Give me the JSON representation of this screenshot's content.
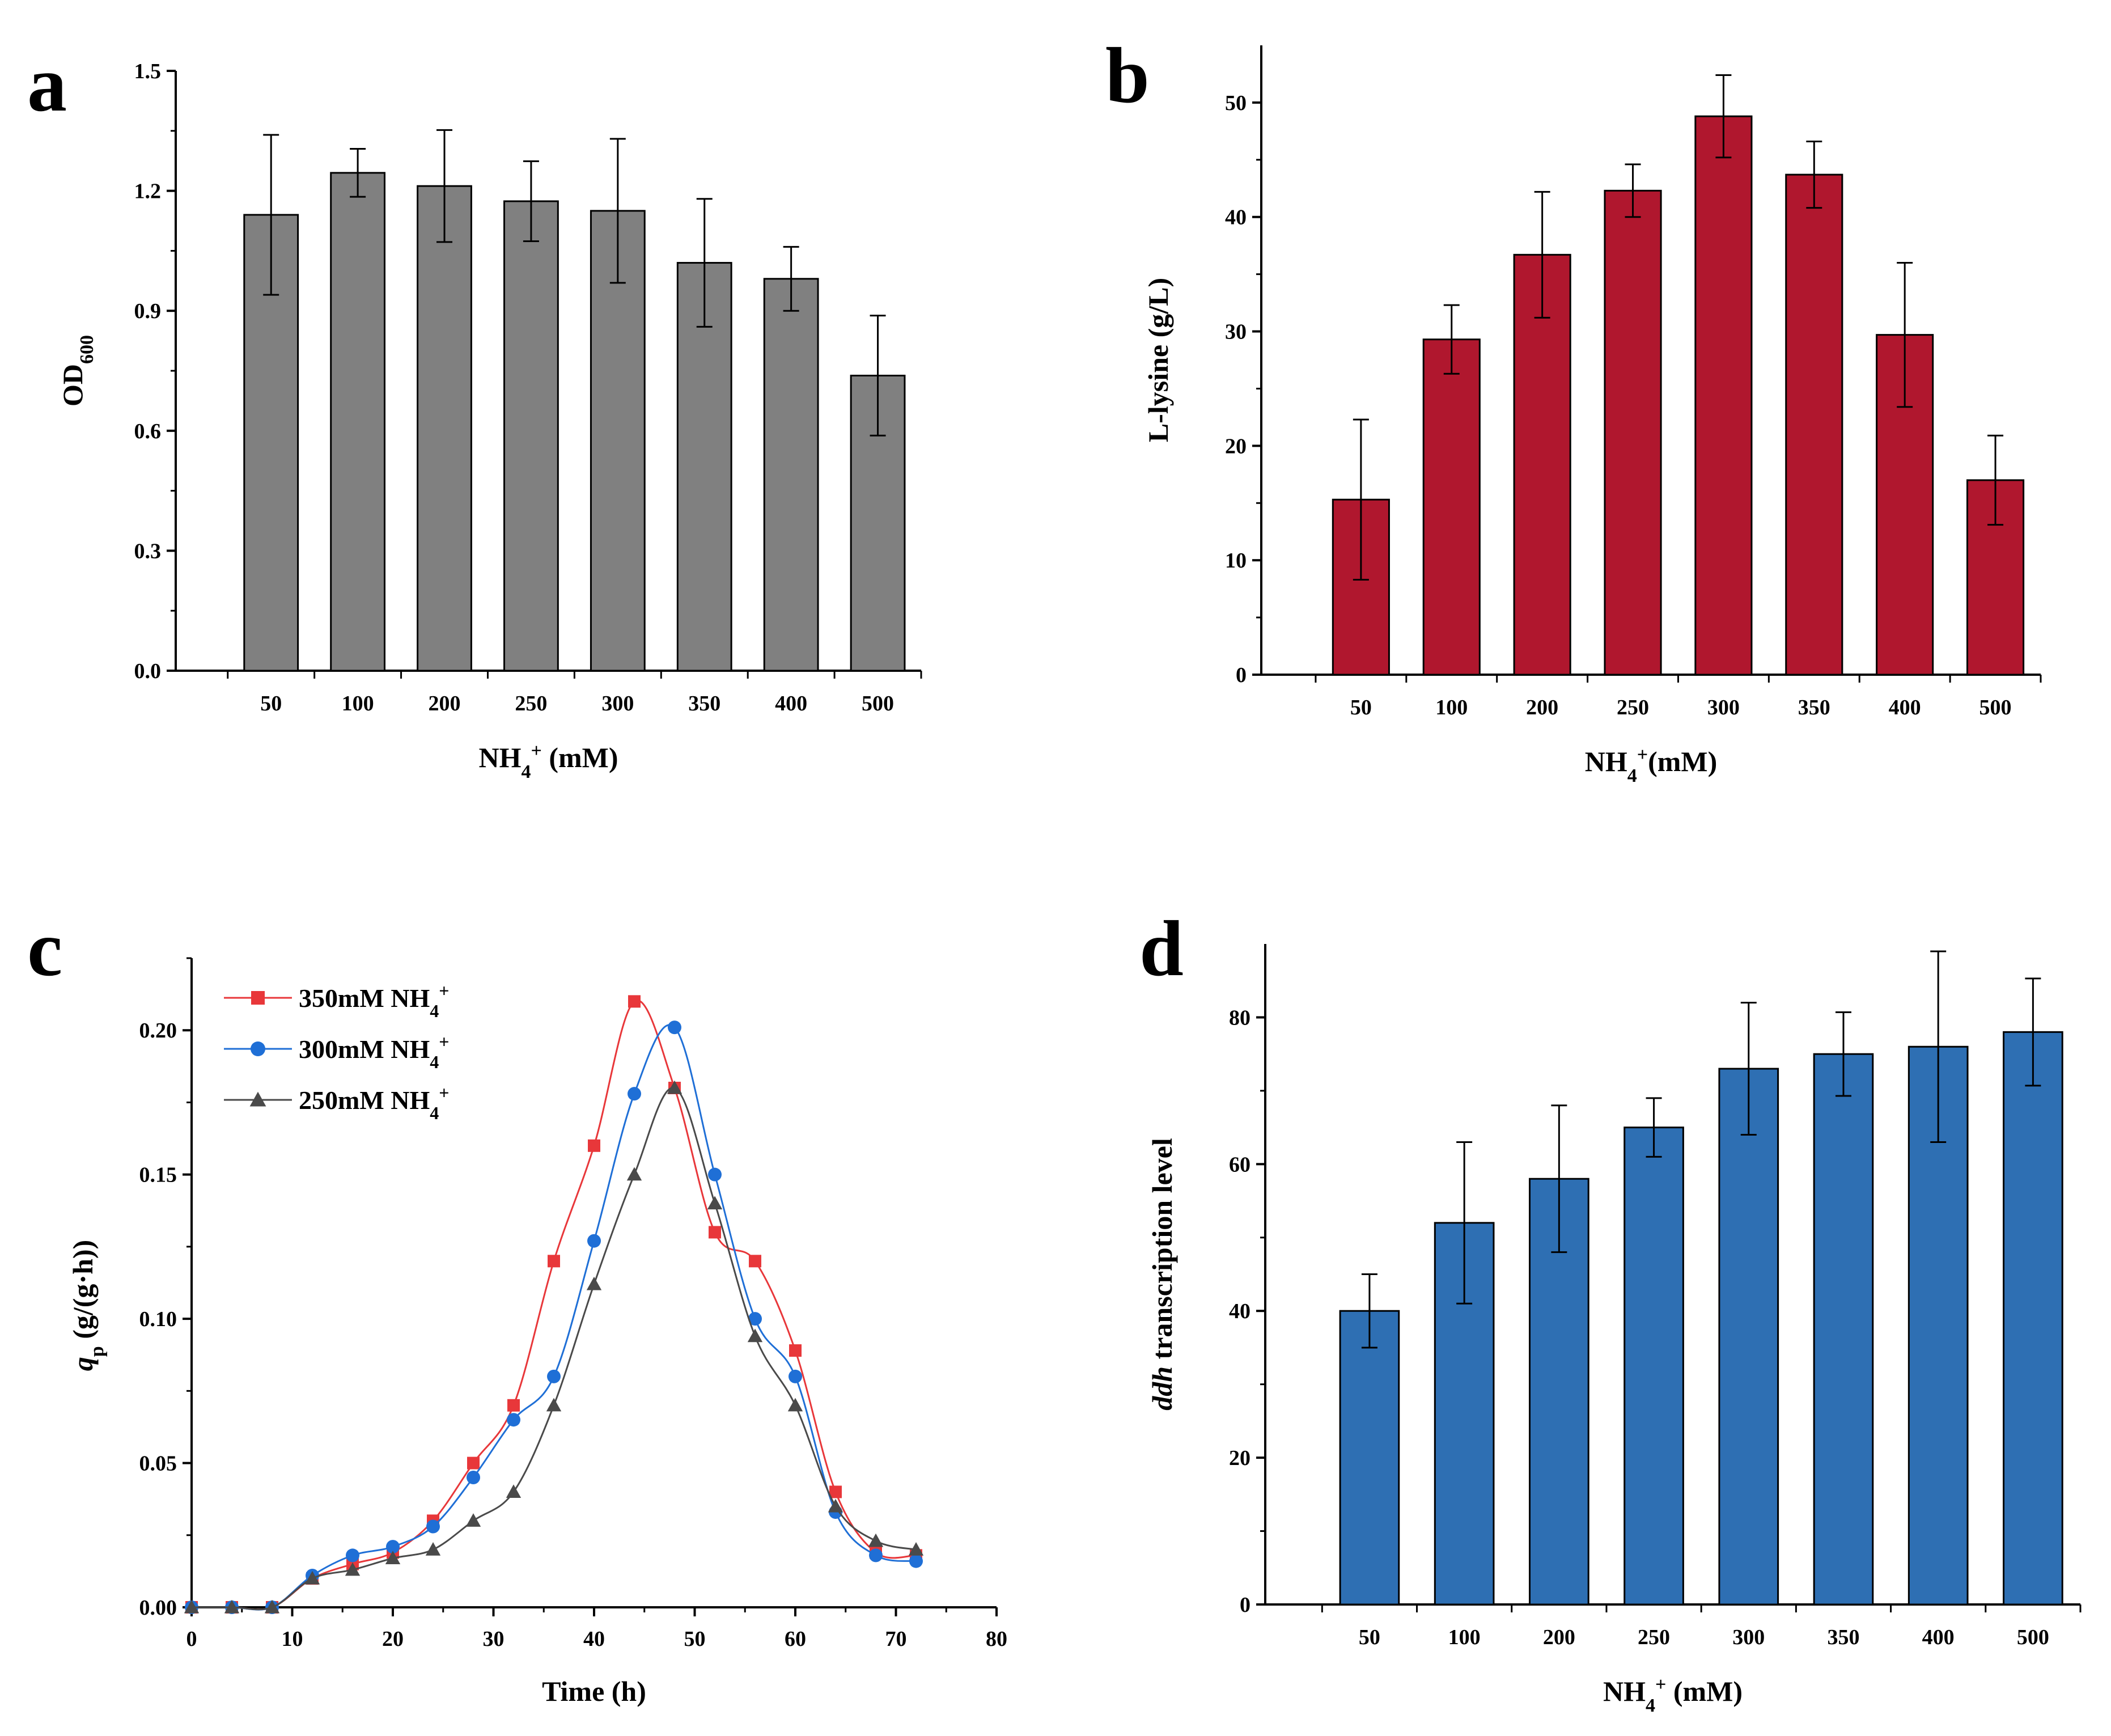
{
  "chart_data": [
    {
      "panel": "a",
      "type": "bar",
      "categories": [
        "50",
        "100",
        "200",
        "250",
        "300",
        "350",
        "400",
        "500"
      ],
      "values": [
        1.14,
        1.245,
        1.212,
        1.174,
        1.15,
        1.02,
        0.98,
        0.738
      ],
      "errors": [
        0.2,
        0.06,
        0.14,
        0.1,
        0.18,
        0.16,
        0.08,
        0.15
      ],
      "color": "#808080",
      "xlabel": "NH",
      "xlabel_sub": "4",
      "xlabel_sup": "+",
      "xlabel_tail": " (mM)",
      "ylabel": "OD",
      "ylabel_sub": "600",
      "ylim": [
        0,
        1.5
      ],
      "yticks": [
        "0.0",
        "0.3",
        "0.6",
        "0.9",
        "1.2",
        "1.5"
      ]
    },
    {
      "panel": "b",
      "type": "bar",
      "categories": [
        "50",
        "100",
        "200",
        "250",
        "300",
        "350",
        "400",
        "500"
      ],
      "values": [
        15.3,
        29.3,
        36.7,
        42.3,
        48.8,
        43.7,
        29.7,
        17.0
      ],
      "errors": [
        7.0,
        3.0,
        5.5,
        2.3,
        3.6,
        2.9,
        6.3,
        3.9
      ],
      "color": "#b0172e",
      "xlabel": "NH",
      "xlabel_sub": "4",
      "xlabel_sup": "+",
      "xlabel_tail": "(mM)",
      "ylabel": "L-lysine (g/L)",
      "ylim": [
        0,
        55
      ],
      "yticks": [
        "0",
        "10",
        "20",
        "30",
        "40",
        "50"
      ]
    },
    {
      "panel": "c",
      "type": "scatter",
      "xlabel": "Time (h)",
      "ylabel": "q",
      "ylabel_sub": "p",
      "ylabel_tail": " (g/(g·h))",
      "xlim": [
        0,
        80
      ],
      "ylim": [
        0,
        0.225
      ],
      "xticks": [
        "0",
        "10",
        "20",
        "30",
        "40",
        "50",
        "60",
        "70",
        "80"
      ],
      "yticks": [
        "0.00",
        "0.05",
        "0.10",
        "0.15",
        "0.20"
      ],
      "series": [
        {
          "name": "350mM NH",
          "name_sub": "4",
          "name_sup": "+",
          "marker": "square",
          "color": "#e8373a",
          "x": [
            0,
            4,
            8,
            12,
            16,
            20,
            24,
            28,
            32,
            36,
            40,
            44,
            48,
            52,
            56,
            60,
            64,
            68,
            72
          ],
          "y": [
            0.0,
            0.0,
            0.0,
            0.01,
            0.015,
            0.019,
            0.03,
            0.05,
            0.07,
            0.12,
            0.16,
            0.21,
            0.18,
            0.13,
            0.12,
            0.089,
            0.04,
            0.019,
            0.018
          ]
        },
        {
          "name": "300mM NH",
          "name_sub": "4",
          "name_sup": "+",
          "marker": "circle",
          "color": "#1f6fd6",
          "x": [
            0,
            4,
            8,
            12,
            16,
            20,
            24,
            28,
            32,
            36,
            40,
            44,
            48,
            52,
            56,
            60,
            64,
            68,
            72
          ],
          "y": [
            0.0,
            0.0,
            0.0,
            0.011,
            0.018,
            0.021,
            0.028,
            0.045,
            0.065,
            0.08,
            0.127,
            0.178,
            0.201,
            0.15,
            0.1,
            0.08,
            0.033,
            0.018,
            0.016
          ]
        },
        {
          "name": "250mM NH",
          "name_sub": "4",
          "name_sup": "+",
          "marker": "triangle",
          "color": "#4a4a4a",
          "x": [
            0,
            4,
            8,
            12,
            16,
            20,
            24,
            28,
            32,
            36,
            40,
            44,
            48,
            52,
            56,
            60,
            64,
            68,
            72
          ],
          "y": [
            0.0,
            0.0,
            0.0,
            0.01,
            0.013,
            0.017,
            0.02,
            0.03,
            0.04,
            0.07,
            0.112,
            0.15,
            0.18,
            0.14,
            0.094,
            0.07,
            0.035,
            0.023,
            0.02
          ]
        }
      ]
    },
    {
      "panel": "d",
      "type": "bar",
      "categories": [
        "50",
        "100",
        "200",
        "250",
        "300",
        "350",
        "400",
        "500"
      ],
      "values": [
        40,
        52,
        58,
        65,
        73,
        75,
        76,
        78
      ],
      "errors": [
        5,
        11,
        10,
        4,
        9,
        5.7,
        13,
        7.3
      ],
      "color": "#2e6fb3",
      "xlabel": "NH",
      "xlabel_sub": "4",
      "xlabel_sup": "+",
      "xlabel_tail": " (mM)",
      "ylabel_italic": "ddh",
      "ylabel": " transcription level",
      "ylim": [
        0,
        90
      ],
      "yticks": [
        "0",
        "20",
        "40",
        "60",
        "80"
      ]
    }
  ]
}
